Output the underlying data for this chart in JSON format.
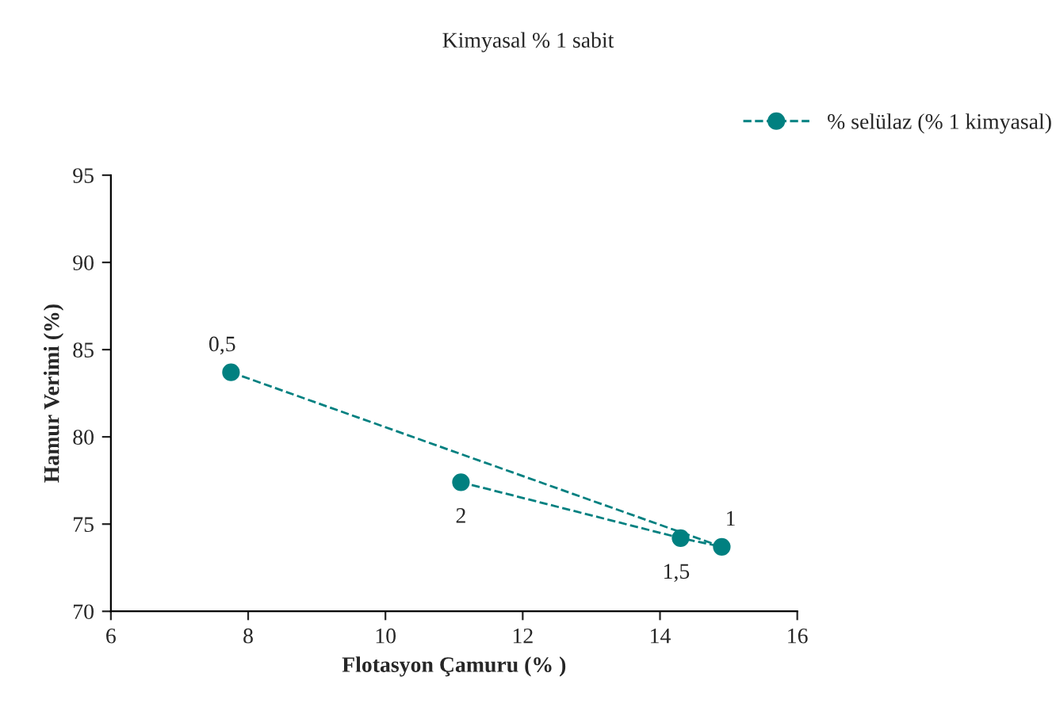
{
  "chart_data": {
    "type": "line",
    "title": "Kimyasal % 1 sabit",
    "xlabel": "Flotasyon Çamuru (% )",
    "ylabel": "Hamur Verimi (%)",
    "series": [
      {
        "name": "% selülaz (% 1 kimyasal)",
        "color": "#008080",
        "x": [
          7.75,
          14.9,
          14.3,
          11.1
        ],
        "values": [
          83.7,
          73.7,
          74.2,
          77.4
        ]
      }
    ],
    "xlim": [
      6,
      16
    ],
    "xticks": [
      6,
      8,
      10,
      12,
      14,
      16
    ],
    "ylim": [
      70,
      95
    ],
    "yticks": [
      70,
      75,
      80,
      85,
      90,
      95
    ],
    "marker": "circle",
    "line_style": "dashed",
    "grid": false,
    "legend": "top right",
    "annotations": [
      {
        "text": "0,5",
        "x": 7.75,
        "y": 83.7
      },
      {
        "text": "1",
        "x": 14.9,
        "y": 73.7
      },
      {
        "text": "1,5",
        "x": 14.3,
        "y": 74.2
      },
      {
        "text": "2",
        "x": 11.1,
        "y": 77.4
      }
    ]
  }
}
